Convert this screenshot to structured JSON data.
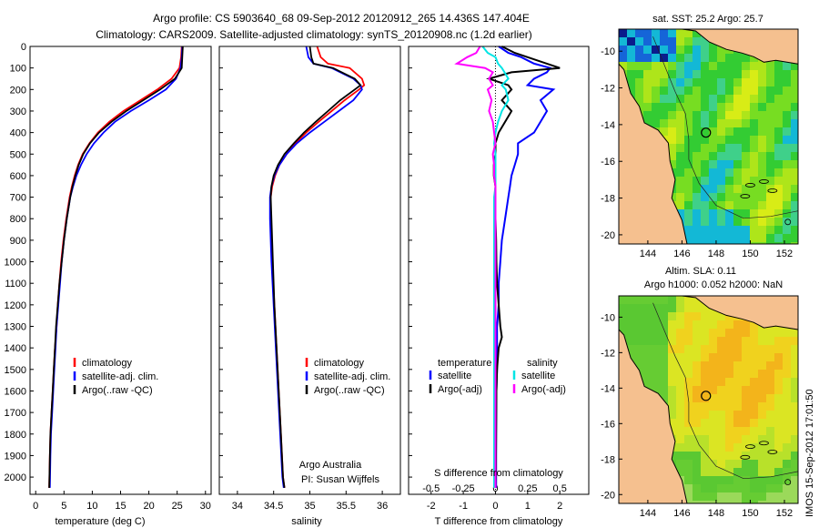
{
  "header": {
    "line1": "Argo profile: CS 5903640_68 09-Sep-2012 20120912_265 14.436S 147.404E",
    "line2": "Climatology: CARS2009. Satellite-adjusted climatology: synTS_20120908.nc (1.2d earlier)"
  },
  "colors": {
    "clim": "#ff0000",
    "sat": "#0000ff",
    "argo": "#000000",
    "sat_s": "#00e5e5",
    "argo_s": "#ff00ff",
    "land": "#f5c08f",
    "frame": "#000000"
  },
  "depth_axis": {
    "ylim": [
      0,
      2080
    ],
    "ticks": [
      0,
      100,
      200,
      300,
      400,
      500,
      600,
      700,
      800,
      900,
      1000,
      1100,
      1200,
      1300,
      1400,
      1500,
      1600,
      1700,
      1800,
      1900,
      2000
    ],
    "tick_labels": [
      "0",
      "100",
      "200",
      "300",
      "400",
      "500",
      "600",
      "700",
      "800",
      "900",
      "1000",
      "1100",
      "1200",
      "1300",
      "1400",
      "1500",
      "1600",
      "1700",
      "1800",
      "1900",
      "2000"
    ]
  },
  "chart_data": [
    {
      "type": "line",
      "name": "temperature profile",
      "xlabel": "temperature (deg C)",
      "xlim": [
        -1,
        31
      ],
      "xticks": [
        0,
        5,
        10,
        15,
        20,
        25,
        30
      ],
      "xtick_labels": [
        "0",
        "5",
        "10",
        "15",
        "20",
        "25",
        "30"
      ],
      "legend": [
        "climatology",
        "satellite-adj. clim.",
        "Argo(..raw -QC)"
      ],
      "legend_position": "lower-middle",
      "depth": [
        0,
        50,
        100,
        150,
        200,
        250,
        300,
        350,
        400,
        450,
        500,
        550,
        600,
        650,
        700,
        800,
        900,
        1000,
        1100,
        1200,
        1300,
        1400,
        1500,
        1600,
        1700,
        1800,
        1900,
        2050
      ],
      "series": [
        {
          "name": "climatology",
          "values": [
            25.8,
            25.7,
            25.4,
            24.0,
            21.5,
            18.5,
            15.5,
            13.0,
            11.0,
            9.5,
            8.3,
            7.5,
            6.9,
            6.4,
            6.0,
            5.4,
            4.9,
            4.5,
            4.2,
            3.9,
            3.7,
            3.4,
            3.2,
            3.0,
            2.8,
            2.6,
            2.5,
            2.4
          ]
        },
        {
          "name": "satellite-adj. clim.",
          "values": [
            25.9,
            25.8,
            25.6,
            24.8,
            23.0,
            20.0,
            16.8,
            14.0,
            12.0,
            10.3,
            9.0,
            8.0,
            7.2,
            6.6,
            6.1,
            5.5,
            5.0,
            4.6,
            4.3,
            4.0,
            3.7,
            3.5,
            3.3,
            3.1,
            2.9,
            2.7,
            2.6,
            2.5
          ]
        },
        {
          "name": "Argo(..raw -QC)",
          "values": [
            26.0,
            25.9,
            25.8,
            24.6,
            22.0,
            19.0,
            16.0,
            13.4,
            11.2,
            9.6,
            8.4,
            7.6,
            7.0,
            6.5,
            6.1,
            5.5,
            5.0,
            4.6,
            4.2,
            3.9,
            3.6,
            3.4,
            3.2,
            3.0,
            2.8,
            2.6,
            2.5,
            2.4
          ]
        }
      ]
    },
    {
      "type": "line",
      "name": "salinity profile",
      "xlabel": "salinity",
      "xlim": [
        33.75,
        36.25
      ],
      "xticks": [
        34,
        34.5,
        35,
        35.5,
        36
      ],
      "xtick_labels": [
        "34",
        "34.5",
        "35",
        "35.5",
        "36"
      ],
      "legend": [
        "climatology",
        "satellite-adj. clim.",
        "Argo(..raw -QC)"
      ],
      "legend_position": "lower-middle",
      "annotation": [
        "Argo Australia",
        "PI: Susan Wijffels"
      ],
      "depth": [
        0,
        50,
        80,
        100,
        150,
        180,
        200,
        250,
        300,
        350,
        400,
        450,
        500,
        550,
        600,
        650,
        700,
        800,
        900,
        1000,
        1200,
        1400,
        1600,
        1800,
        2000,
        2050
      ],
      "series": [
        {
          "name": "climatology",
          "values": [
            35.1,
            35.15,
            35.25,
            35.55,
            35.72,
            35.75,
            35.68,
            35.48,
            35.3,
            35.12,
            34.95,
            34.8,
            34.68,
            34.58,
            34.52,
            34.48,
            34.46,
            34.46,
            34.47,
            34.48,
            34.51,
            34.54,
            34.57,
            34.6,
            34.63,
            34.65
          ]
        },
        {
          "name": "satellite-adj. clim.",
          "values": [
            34.95,
            34.98,
            35.05,
            35.3,
            35.6,
            35.7,
            35.72,
            35.6,
            35.4,
            35.2,
            35.0,
            34.82,
            34.68,
            34.58,
            34.51,
            34.47,
            34.45,
            34.45,
            34.46,
            34.47,
            34.5,
            34.53,
            34.56,
            34.59,
            34.62,
            34.64
          ]
        },
        {
          "name": "Argo(..raw -QC)",
          "values": [
            35.0,
            35.02,
            35.05,
            35.32,
            35.62,
            35.7,
            35.62,
            35.42,
            35.25,
            35.08,
            34.92,
            34.78,
            34.65,
            34.56,
            34.5,
            34.47,
            34.46,
            34.47,
            34.48,
            34.49,
            34.51,
            34.54,
            34.57,
            34.6,
            34.63,
            34.65
          ]
        }
      ]
    },
    {
      "type": "line",
      "name": "difference from climatology",
      "xlabel": "T difference from climatology",
      "xlim": [
        -2.7,
        2.9
      ],
      "xticks": [
        -2,
        -1,
        0,
        1,
        2
      ],
      "xtick_labels": [
        "-2",
        "-1",
        "0",
        "1",
        "2"
      ],
      "top_label": "S difference from climatology",
      "s_ticks": [
        -0.5,
        -0.25,
        0,
        0.25,
        0.5
      ],
      "s_tick_labels": [
        "-0.5",
        "-0.25",
        "0",
        "0.25",
        "0.5"
      ],
      "legend_groups": [
        {
          "title": "temperature",
          "items": [
            "satellite",
            "Argo(-adj)"
          ]
        },
        {
          "title": "salinity",
          "items": [
            "satellite",
            "Argo(-adj)"
          ]
        }
      ],
      "depth": [
        0,
        30,
        50,
        80,
        100,
        120,
        150,
        180,
        200,
        250,
        300,
        350,
        400,
        450,
        500,
        550,
        600,
        650,
        700,
        800,
        900,
        1000,
        1100,
        1200,
        1300,
        1350,
        1400,
        1500,
        1600,
        1800,
        2000,
        2050
      ],
      "series": [
        {
          "name": "temperature satellite",
          "values": [
            0.1,
            0.4,
            0.8,
            1.2,
            1.7,
            1.6,
            1.2,
            1.0,
            1.8,
            1.4,
            1.6,
            1.4,
            1.2,
            0.7,
            0.7,
            0.6,
            0.5,
            0.45,
            0.4,
            0.3,
            0.2,
            0.15,
            0.1,
            0.1,
            0.05,
            0.05,
            0.05,
            0.05,
            0.03,
            0.02,
            0.02,
            0.02
          ]
        },
        {
          "name": "temperature Argo(-adj)",
          "values": [
            0.2,
            0.6,
            1.0,
            1.6,
            2.0,
            0.5,
            -0.2,
            0.4,
            0.5,
            0.2,
            0.5,
            0.3,
            0.1,
            0.0,
            0.0,
            -0.05,
            -0.05,
            0.0,
            -0.02,
            0.0,
            0.02,
            0.03,
            0.05,
            0.1,
            0.15,
            0.2,
            0.1,
            0.05,
            0.03,
            0.02,
            0.01,
            0.0
          ]
        },
        {
          "name": "salinity satellite",
          "values": [
            -0.1,
            -0.06,
            0.0,
            0.02,
            0.05,
            0.07,
            0.1,
            0.05,
            0.08,
            0.1,
            0.05,
            0.02,
            0.0,
            -0.01,
            0.0,
            0.0,
            0.0,
            0.0,
            -0.01,
            -0.01,
            -0.01,
            -0.01,
            -0.01,
            -0.01,
            -0.01,
            -0.01,
            -0.01,
            -0.01,
            -0.01,
            -0.01,
            -0.01,
            -0.01
          ]
        },
        {
          "name": "salinity Argo(-adj)",
          "values": [
            -0.12,
            -0.15,
            -0.22,
            -0.3,
            -0.08,
            -0.02,
            -0.05,
            -0.02,
            -0.06,
            -0.03,
            -0.05,
            -0.02,
            -0.01,
            0.0,
            -0.02,
            -0.01,
            -0.01,
            0.0,
            0.0,
            0.0,
            0.0,
            0.0,
            0.0,
            0.0,
            0.0,
            0.0,
            0.0,
            0.0,
            0.0,
            0.0,
            0.0,
            0.0
          ]
        }
      ]
    },
    {
      "type": "heatmap",
      "name": "satellite SST map",
      "title": "sat. SST: 25.2  Argo: 25.7",
      "xlim": [
        142.3,
        152.8
      ],
      "ylim": [
        -20.5,
        -8.8
      ],
      "xticks": [
        144,
        146,
        148,
        150,
        152
      ],
      "xtick_labels": [
        "144",
        "146",
        "148",
        "150",
        "152"
      ],
      "yticks": [
        -10,
        -12,
        -14,
        -16,
        -18,
        -20
      ],
      "ytick_labels": [
        "-10",
        "-12",
        "-14",
        "-16",
        "-18",
        "-20"
      ],
      "argo_position": [
        147.404,
        -14.436
      ]
    },
    {
      "type": "heatmap",
      "name": "altimetry SLA map",
      "title_lines": [
        "Altim. SLA: 0.11",
        "Argo h1000: 0.052 h2000: NaN"
      ],
      "xlim": [
        142.3,
        152.8
      ],
      "ylim": [
        -20.5,
        -8.8
      ],
      "xticks": [
        144,
        146,
        148,
        150,
        152
      ],
      "xtick_labels": [
        "144",
        "146",
        "148",
        "150",
        "152"
      ],
      "yticks": [
        -10,
        -12,
        -14,
        -16,
        -18,
        -20
      ],
      "ytick_labels": [
        "-10",
        "-12",
        "-14",
        "-16",
        "-18",
        "-20"
      ],
      "argo_position": [
        147.404,
        -14.436
      ]
    }
  ],
  "footer": {
    "stamp": "IMOS 15-Sep-2012 17:01:50"
  }
}
